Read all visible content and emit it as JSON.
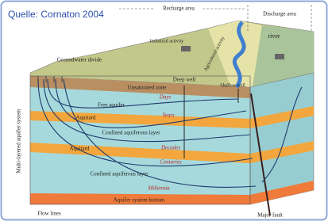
{
  "header": {
    "source": "Quelle: Cornaton 2004"
  },
  "areas": {
    "recharge": "Recharge area",
    "discharge": "Discharge area",
    "river": "river"
  },
  "surface": {
    "industrial": "Industrial activity",
    "agricultural": "Agricultural activity",
    "divide": "Groundwater divide",
    "deep_well": "Deep well",
    "shallow_well": "Shallow well"
  },
  "layers": [
    "Unsaturated zone",
    "Free aquifer",
    "Aquitard",
    "Confined aquiferous layer",
    "Aquitard",
    "Confined aquiferous layer",
    "Aquifer system bottom"
  ],
  "time_scales": [
    "Days",
    "Years",
    "Decades",
    "Centuries",
    "Millennia"
  ],
  "side_label": "Multi-layered aquifer system",
  "footer": {
    "flow_lines": "Flow lines",
    "fault": "Major fault"
  }
}
